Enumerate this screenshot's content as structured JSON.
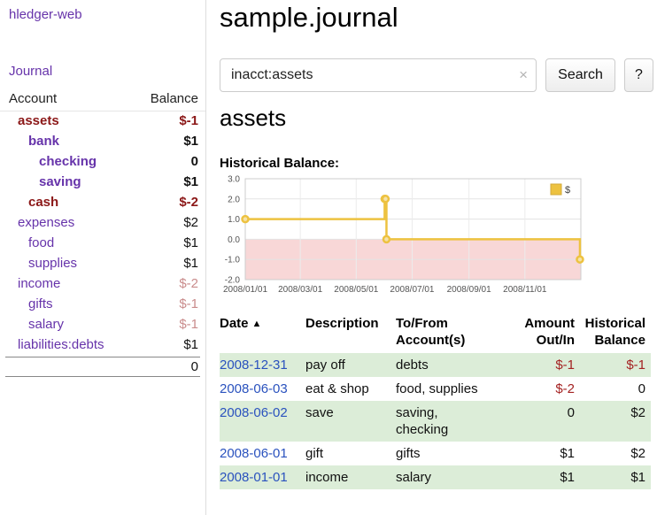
{
  "app": {
    "brand": "hledger-web"
  },
  "sidebar": {
    "journal_link": "Journal",
    "header": {
      "account": "Account",
      "balance": "Balance"
    },
    "accounts": [
      {
        "name": "assets",
        "balance": "$-1",
        "depth": 1,
        "bold": true,
        "name_style": "negative",
        "balance_style": "negative"
      },
      {
        "name": "bank",
        "balance": "$1",
        "depth": 2,
        "bold": true,
        "name_style": "link",
        "balance_style": "normal"
      },
      {
        "name": "checking",
        "balance": "0",
        "depth": 3,
        "bold": true,
        "name_style": "link",
        "balance_style": "normal"
      },
      {
        "name": "saving",
        "balance": "$1",
        "depth": 3,
        "bold": true,
        "name_style": "link",
        "balance_style": "normal"
      },
      {
        "name": "cash",
        "balance": "$-2",
        "depth": 2,
        "bold": true,
        "name_style": "negative",
        "balance_style": "negative"
      },
      {
        "name": "expenses",
        "balance": "$2",
        "depth": 1,
        "bold": false,
        "name_style": "link",
        "balance_style": "normal"
      },
      {
        "name": "food",
        "balance": "$1",
        "depth": 2,
        "bold": false,
        "name_style": "link",
        "balance_style": "normal"
      },
      {
        "name": "supplies",
        "balance": "$1",
        "depth": 2,
        "bold": false,
        "name_style": "link",
        "balance_style": "normal"
      },
      {
        "name": "income",
        "balance": "$-2",
        "depth": 1,
        "bold": false,
        "name_style": "link",
        "balance_style": "soft-negative"
      },
      {
        "name": "gifts",
        "balance": "$-1",
        "depth": 2,
        "bold": false,
        "name_style": "link",
        "balance_style": "soft-negative"
      },
      {
        "name": "salary",
        "balance": "$-1",
        "depth": 2,
        "bold": false,
        "name_style": "link",
        "balance_style": "soft-negative"
      },
      {
        "name": "liabilities:debts",
        "balance": "$1",
        "depth": 1,
        "bold": false,
        "name_style": "link",
        "balance_style": "normal"
      }
    ],
    "total": "0"
  },
  "main": {
    "title": "sample.journal",
    "search": {
      "value": "inacct:assets",
      "clear_icon": "×",
      "button_label": "Search",
      "help_label": "?"
    },
    "account_heading": "assets",
    "chart_title": "Historical Balance:"
  },
  "chart_data": {
    "type": "line",
    "step": true,
    "title": "Historical Balance:",
    "series_label": "$",
    "series_color": "#edc240",
    "negative_region_color": "#f8d7d7",
    "points": [
      {
        "x": "2008-01-01",
        "y": 1
      },
      {
        "x": "2008-06-01",
        "y": 2
      },
      {
        "x": "2008-06-02",
        "y": 2
      },
      {
        "x": "2008-06-03",
        "y": 0
      },
      {
        "x": "2008-12-31",
        "y": -1
      }
    ],
    "xlim": [
      "2008-01-01",
      "2009-01-01"
    ],
    "ylim": [
      -2,
      3
    ],
    "yticks": [
      3.0,
      2.0,
      1.0,
      0.0,
      -1.0,
      -2.0
    ],
    "xticks": [
      "2008-01-01",
      "2008-03-01",
      "2008-05-01",
      "2008-07-01",
      "2008-09-01",
      "2008-11-01"
    ],
    "xtick_format": "YYYY/MM/DD",
    "legend_position": "top-right",
    "grid": true
  },
  "register": {
    "columns": {
      "date": "Date",
      "sort_indicator": "▲",
      "description": "Description",
      "accounts_line1": "To/From",
      "accounts_line2": "Account(s)",
      "amount_line1": "Amount",
      "amount_line2": "Out/In",
      "balance_line1": "Historical",
      "balance_line2": "Balance"
    },
    "rows": [
      {
        "date": "2008-12-31",
        "description": "pay off",
        "accounts": "debts",
        "amount": "$-1",
        "amount_negative": true,
        "balance": "$-1",
        "balance_negative": true,
        "shaded": true
      },
      {
        "date": "2008-06-03",
        "description": "eat & shop",
        "accounts": "food, supplies",
        "amount": "$-2",
        "amount_negative": true,
        "balance": "0",
        "balance_negative": false,
        "shaded": false
      },
      {
        "date": "2008-06-02",
        "description": "save",
        "accounts": "saving,\nchecking",
        "amount": "0",
        "amount_negative": false,
        "balance": "$2",
        "balance_negative": false,
        "shaded": true
      },
      {
        "date": "2008-06-01",
        "description": "gift",
        "accounts": "gifts",
        "amount": "$1",
        "amount_negative": false,
        "balance": "$2",
        "balance_negative": false,
        "shaded": false
      },
      {
        "date": "2008-01-01",
        "description": "income",
        "accounts": "salary",
        "amount": "$1",
        "amount_negative": false,
        "balance": "$1",
        "balance_negative": false,
        "shaded": true
      }
    ]
  }
}
